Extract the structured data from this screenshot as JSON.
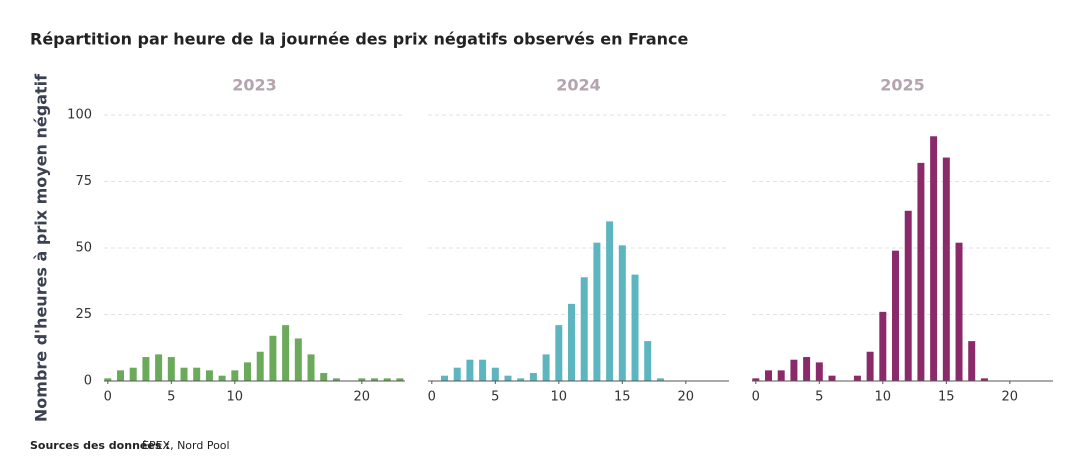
{
  "title": "Répartition par heure de la journée des prix négatifs observés en France",
  "ylabel": "Nombre d'heures à prix moyen négatif",
  "source_label": "Sources des données :",
  "source_text": "EPEX, Nord Pool",
  "chart_data": [
    {
      "type": "bar",
      "title": "2023",
      "color": "#6aaa5a",
      "x": [
        0,
        1,
        2,
        3,
        4,
        5,
        6,
        7,
        8,
        9,
        10,
        11,
        12,
        13,
        14,
        15,
        16,
        17,
        18,
        19,
        20,
        21,
        22,
        23
      ],
      "values": [
        1,
        4,
        5,
        9,
        10,
        9,
        5,
        5,
        4,
        2,
        4,
        7,
        11,
        17,
        21,
        16,
        10,
        3,
        1,
        0,
        1,
        1,
        1,
        1
      ],
      "xlim": [
        -0.3,
        23.4
      ],
      "xticks": [
        0,
        5,
        10,
        20
      ],
      "ylim": [
        0,
        100
      ],
      "yticks": [
        0,
        25,
        50,
        75,
        100
      ],
      "grid": true
    },
    {
      "type": "bar",
      "title": "2024",
      "color": "#5cb5bf",
      "x": [
        0,
        1,
        2,
        3,
        4,
        5,
        6,
        7,
        8,
        9,
        10,
        11,
        12,
        13,
        14,
        15,
        16,
        17,
        18,
        19,
        20,
        21,
        22,
        23
      ],
      "values": [
        0,
        2,
        5,
        8,
        8,
        5,
        2,
        1,
        3,
        10,
        21,
        29,
        39,
        52,
        60,
        51,
        40,
        15,
        1,
        0,
        0,
        0,
        0,
        0
      ],
      "xlim": [
        -0.3,
        23.4
      ],
      "xticks": [
        0,
        5,
        10,
        15,
        20
      ],
      "ylim": [
        0,
        100
      ],
      "yticks": [
        0,
        25,
        50,
        75,
        100
      ],
      "grid": true
    },
    {
      "type": "bar",
      "title": "2025",
      "color": "#8b2a6a",
      "x": [
        0,
        1,
        2,
        3,
        4,
        5,
        6,
        7,
        8,
        9,
        10,
        11,
        12,
        13,
        14,
        15,
        16,
        17,
        18,
        19,
        20,
        21,
        22,
        23
      ],
      "values": [
        1,
        4,
        4,
        8,
        9,
        7,
        2,
        0,
        2,
        11,
        26,
        49,
        64,
        82,
        92,
        84,
        52,
        15,
        1,
        0,
        0,
        0,
        0,
        0
      ],
      "xlim": [
        -0.3,
        23.4
      ],
      "xticks": [
        0,
        5,
        10,
        15,
        20
      ],
      "ylim": [
        0,
        100
      ],
      "yticks": [
        0,
        25,
        50,
        75,
        100
      ],
      "grid": true
    }
  ]
}
